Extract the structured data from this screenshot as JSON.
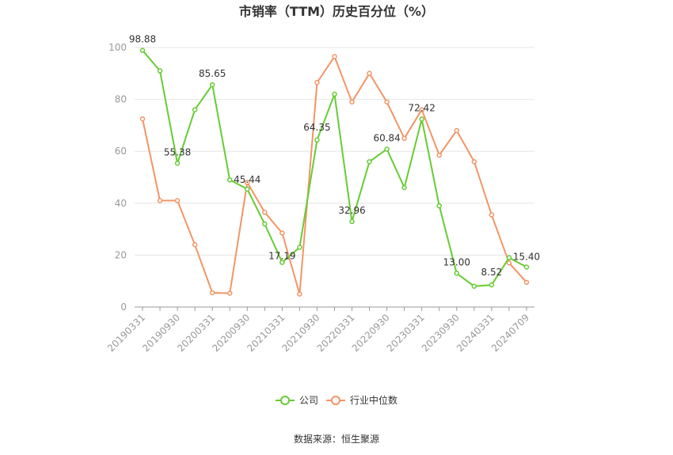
{
  "chart_data": {
    "type": "line",
    "title": "市销率（TTM）历史百分位（%）",
    "source": "数据来源：恒生聚源",
    "ylim": [
      0,
      100
    ],
    "yticks": [
      0,
      20,
      40,
      60,
      80,
      100
    ],
    "grid": true,
    "legend_position": "bottom",
    "x": [
      "20190331",
      "20190630",
      "20190930",
      "20191231",
      "20200331",
      "20200630",
      "20200930",
      "20201231",
      "20210331",
      "20210630",
      "20210930",
      "20211231",
      "20220331",
      "20220630",
      "20220930",
      "20221231",
      "20230331",
      "20230630",
      "20230930",
      "20231231",
      "20240331",
      "20240630",
      "20240709"
    ],
    "xtick_labels": [
      "20190331",
      "20190930",
      "20200331",
      "20200930",
      "20210331",
      "20210930",
      "20220331",
      "20220930",
      "20230331",
      "20230930",
      "20240331",
      "20240709"
    ],
    "series": [
      {
        "name": "公司",
        "color": "#66cc33",
        "values": [
          98.88,
          91.0,
          55.38,
          76.0,
          85.65,
          49.0,
          45.44,
          32.0,
          17.19,
          23.0,
          64.35,
          82.0,
          32.96,
          56.0,
          60.84,
          46.0,
          72.42,
          39.0,
          13.0,
          8.0,
          8.52,
          19.0,
          15.4
        ],
        "labels": {
          "0": "98.88",
          "2": "55.38",
          "4": "85.65",
          "6": "45.44",
          "8": "17.19",
          "10": "64.35",
          "12": "32.96",
          "14": "60.84",
          "16": "72.42",
          "18": "13.00",
          "20": "8.52",
          "22": "15.40"
        }
      },
      {
        "name": "行业中位数",
        "color": "#f29566",
        "values": [
          72.5,
          41.0,
          41.0,
          24.0,
          5.5,
          5.3,
          48.0,
          36.5,
          28.5,
          5.0,
          86.5,
          96.5,
          79.0,
          90.0,
          79.0,
          65.0,
          76.0,
          58.5,
          68.0,
          56.0,
          35.5,
          17.0,
          9.5
        ]
      }
    ]
  }
}
